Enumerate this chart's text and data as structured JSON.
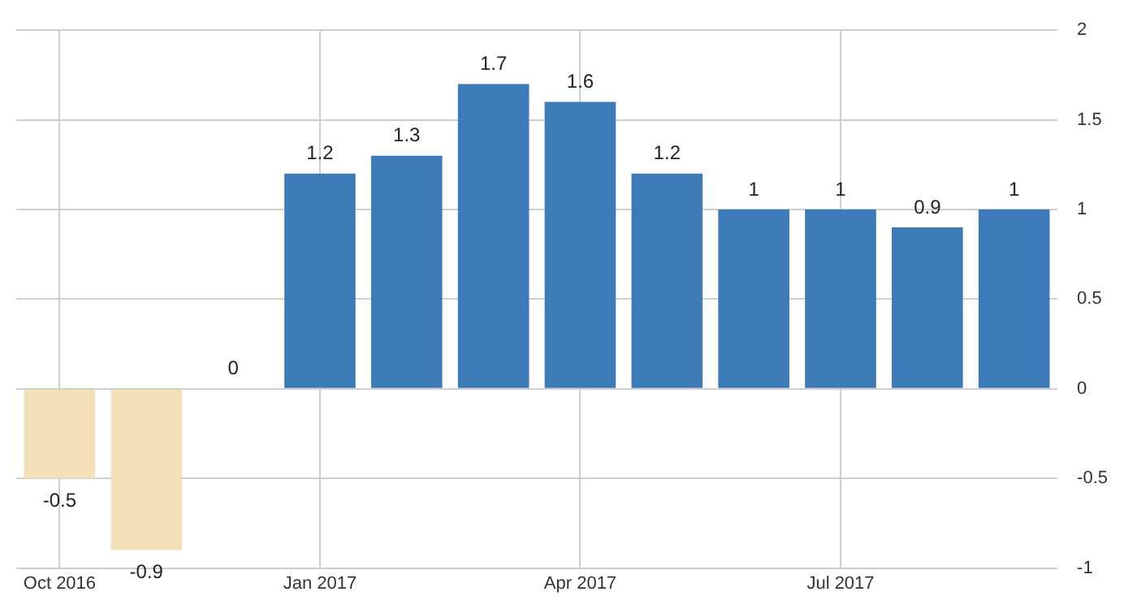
{
  "chart_data": {
    "type": "bar",
    "categories": [
      "Oct 2016",
      null,
      null,
      "Jan 2017",
      null,
      null,
      "Apr 2017",
      null,
      null,
      "Jul 2017",
      null,
      null
    ],
    "values": [
      -0.5,
      -0.9,
      0,
      1.2,
      1.3,
      1.7,
      1.6,
      1.2,
      1,
      1,
      0.9,
      1
    ],
    "colors": [
      "#f3dfb8",
      "#f3dfb8",
      "#3d7ab8",
      "#3d7ab8",
      "#3d7ab8",
      "#3d7ab8",
      "#3d7ab8",
      "#3d7ab8",
      "#3d7ab8",
      "#3d7ab8",
      "#3d7ab8",
      "#3d7ab8"
    ],
    "ylim": [
      -1,
      2
    ],
    "yticks": [
      -1,
      -0.5,
      0,
      0.5,
      1,
      1.5,
      2
    ],
    "grid": true,
    "legend": false,
    "data_labels": true
  }
}
